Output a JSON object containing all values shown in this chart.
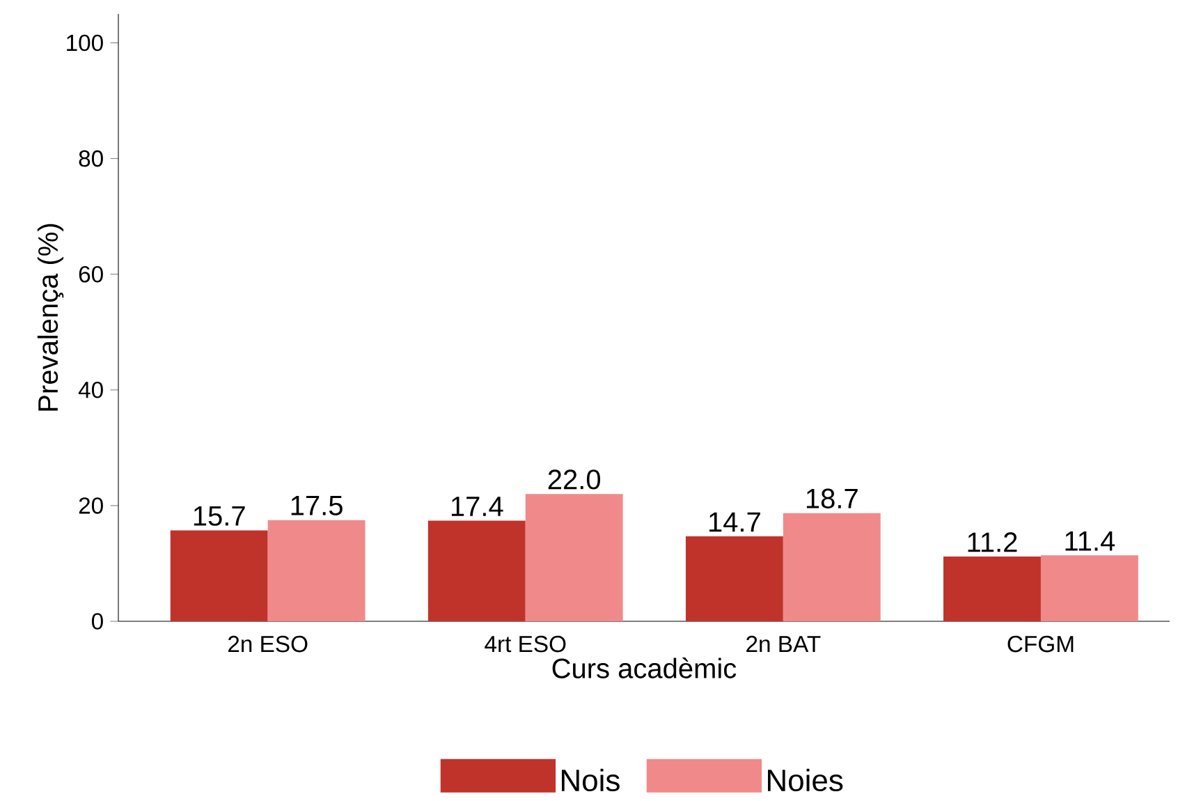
{
  "chart_data": {
    "type": "bar",
    "xlabel": "Curs acadèmic",
    "ylabel": "Prevalença (%)",
    "categories": [
      "2n ESO",
      "4rt ESO",
      "2n BAT",
      "CFGM"
    ],
    "series": [
      {
        "name": "Nois",
        "color": "#c0332b",
        "values": [
          15.7,
          17.4,
          14.7,
          11.2
        ],
        "value_labels": [
          "15.7",
          "17.4",
          "14.7",
          "11.2"
        ]
      },
      {
        "name": "Noies",
        "color": "#f08a8a",
        "values": [
          17.5,
          22.0,
          18.7,
          11.4
        ],
        "value_labels": [
          "17.5",
          "22.0",
          "18.7",
          "11.4"
        ]
      }
    ],
    "ylim": [
      0,
      105
    ],
    "yticks": [
      0,
      20,
      40,
      60,
      80,
      100
    ],
    "grid": false,
    "legend": "bottom"
  }
}
